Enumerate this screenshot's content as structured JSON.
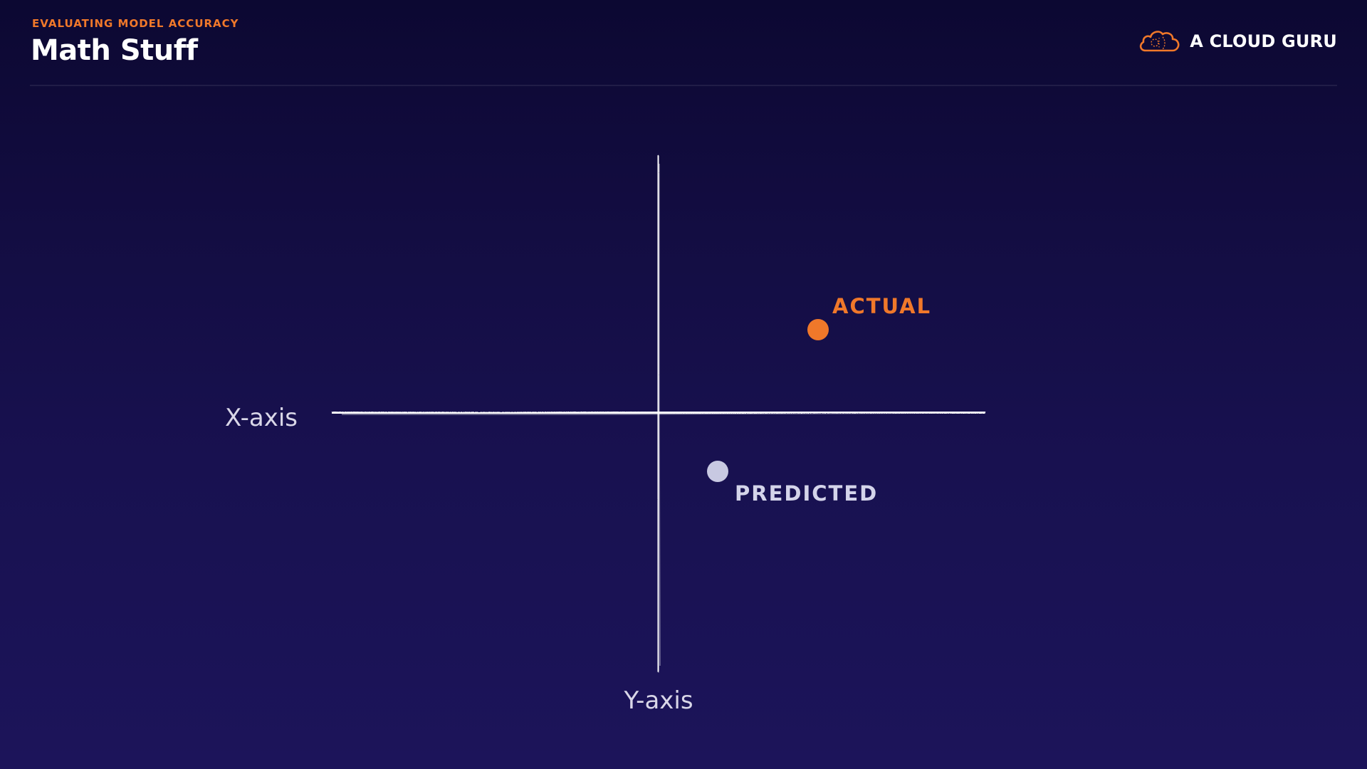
{
  "header": {
    "eyebrow": "EVALUATING MODEL ACCURACY",
    "title": "Math Stuff",
    "brand_name": "A CLOUD GURU",
    "brand_icon": "cloud-icon"
  },
  "diagram": {
    "x_axis_label": "X-axis",
    "y_axis_label": "Y-axis",
    "points": [
      {
        "label": "ACTUAL",
        "color": "#f0782a"
      },
      {
        "label": "PREDICTED",
        "color": "#c8c9e2"
      }
    ]
  },
  "colors": {
    "accent": "#f0782a",
    "axis": "#ffffff",
    "background_top": "#0c0832",
    "background_bottom": "#1c145a"
  }
}
